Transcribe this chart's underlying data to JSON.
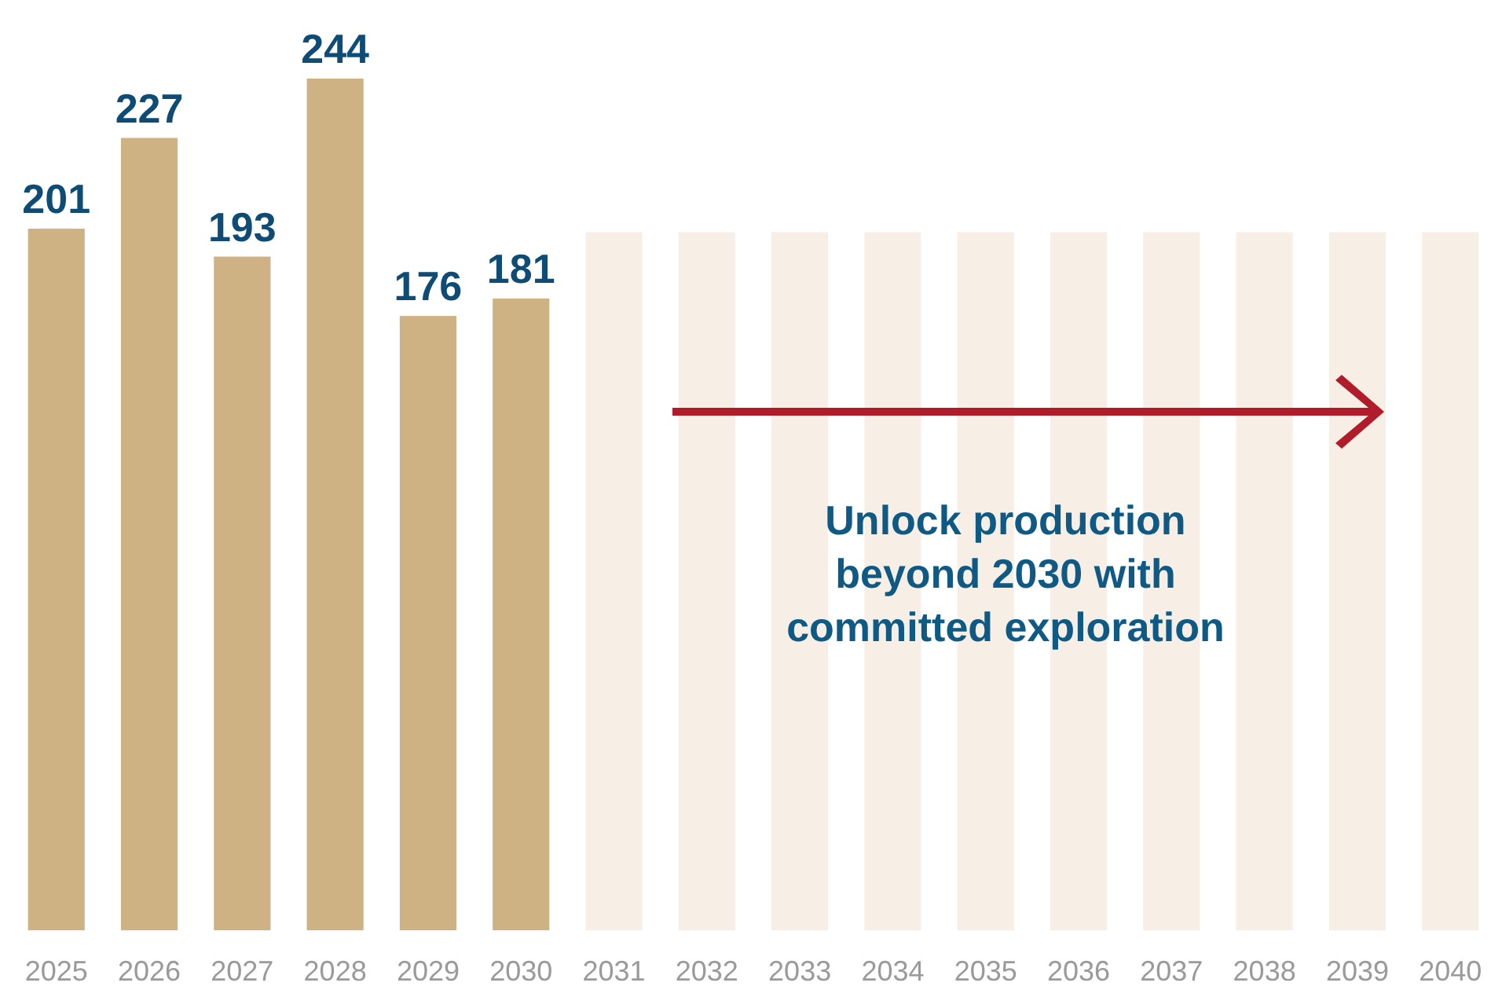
{
  "chart_data": {
    "type": "bar",
    "categories": [
      "2025",
      "2026",
      "2027",
      "2028",
      "2029",
      "2030",
      "2031",
      "2032",
      "2033",
      "2034",
      "2035",
      "2036",
      "2037",
      "2038",
      "2039",
      "2040"
    ],
    "values": [
      201,
      227,
      193,
      244,
      176,
      181,
      200,
      200,
      200,
      200,
      200,
      200,
      200,
      200,
      200,
      200
    ],
    "colors": [
      "#cfb284",
      "#cfb284",
      "#cfb284",
      "#cfb284",
      "#cfb284",
      "#cfb284",
      "#f7efe5",
      "#f7efe5",
      "#f7efe5",
      "#f7efe5",
      "#f7efe5",
      "#f7efe5",
      "#f7efe5",
      "#f7efe5",
      "#f7efe5",
      "#f7efe5"
    ],
    "value_labels": [
      "201",
      "227",
      "193",
      "244",
      "176",
      "181",
      null,
      null,
      null,
      null,
      null,
      null,
      null,
      null,
      null,
      null
    ],
    "annotations": [
      "Unlock production beyond 2030 with committed exploration"
    ]
  }
}
